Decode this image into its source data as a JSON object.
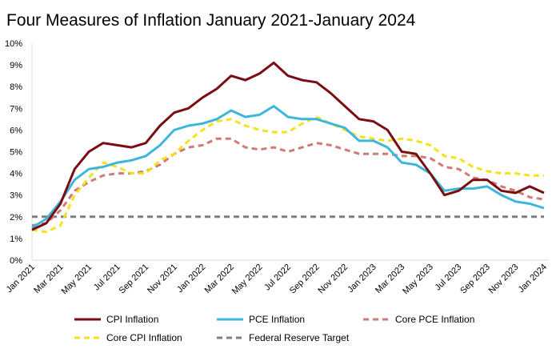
{
  "chart_data": {
    "type": "line",
    "title": "Four Measures of Inflation January 2021-January 2024",
    "xlabel": "",
    "ylabel": "",
    "ylim": [
      0,
      10
    ],
    "yticks": [
      "0%",
      "1%",
      "2%",
      "3%",
      "4%",
      "5%",
      "6%",
      "7%",
      "8%",
      "9%",
      "10%"
    ],
    "x_tick_labels": [
      "Jan 2021",
      "Mar 2021",
      "May 2021",
      "Jul 2021",
      "Sep 2021",
      "Nov 2021",
      "Jan 2022",
      "Mar 2022",
      "May 2022",
      "Jul 2022",
      "Sep 2022",
      "Nov 2022",
      "Jan 2023",
      "Mar 2023",
      "May 2023",
      "Jul 2023",
      "Sep 2023",
      "Nov 2023",
      "Jan 2024"
    ],
    "x": [
      "Jan 2021",
      "Feb 2021",
      "Mar 2021",
      "Apr 2021",
      "May 2021",
      "Jun 2021",
      "Jul 2021",
      "Aug 2021",
      "Sep 2021",
      "Oct 2021",
      "Nov 2021",
      "Dec 2021",
      "Jan 2022",
      "Feb 2022",
      "Mar 2022",
      "Apr 2022",
      "May 2022",
      "Jun 2022",
      "Jul 2022",
      "Aug 2022",
      "Sep 2022",
      "Oct 2022",
      "Nov 2022",
      "Dec 2022",
      "Jan 2023",
      "Feb 2023",
      "Mar 2023",
      "Apr 2023",
      "May 2023",
      "Jun 2023",
      "Jul 2023",
      "Aug 2023",
      "Sep 2023",
      "Oct 2023",
      "Nov 2023",
      "Dec 2023",
      "Jan 2024"
    ],
    "grid": false,
    "legend_position": "bottom",
    "series": [
      {
        "name": "CPI Inflation",
        "color": "#7a0c12",
        "style": "solid",
        "values": [
          1.4,
          1.7,
          2.6,
          4.2,
          5.0,
          5.4,
          5.3,
          5.2,
          5.4,
          6.2,
          6.8,
          7.0,
          7.5,
          7.9,
          8.5,
          8.3,
          8.6,
          9.1,
          8.5,
          8.3,
          8.2,
          7.7,
          7.1,
          6.5,
          6.4,
          6.0,
          5.0,
          4.9,
          4.0,
          3.0,
          3.2,
          3.7,
          3.7,
          3.2,
          3.1,
          3.4,
          3.1
        ]
      },
      {
        "name": "PCE Inflation",
        "color": "#3db6dd",
        "style": "solid",
        "values": [
          1.5,
          1.9,
          2.7,
          3.7,
          4.2,
          4.3,
          4.5,
          4.6,
          4.8,
          5.3,
          6.0,
          6.2,
          6.3,
          6.5,
          6.9,
          6.6,
          6.7,
          7.1,
          6.6,
          6.5,
          6.5,
          6.3,
          6.1,
          5.5,
          5.5,
          5.2,
          4.5,
          4.4,
          4.0,
          3.2,
          3.3,
          3.3,
          3.4,
          3.0,
          2.7,
          2.6,
          2.4
        ]
      },
      {
        "name": "Core PCE Inflation",
        "color": "#d07a78",
        "style": "dashed",
        "values": [
          1.6,
          1.7,
          2.3,
          3.2,
          3.6,
          3.9,
          4.0,
          4.0,
          4.1,
          4.4,
          4.9,
          5.2,
          5.3,
          5.6,
          5.6,
          5.2,
          5.1,
          5.2,
          5.0,
          5.2,
          5.4,
          5.3,
          5.1,
          4.9,
          4.9,
          4.9,
          4.8,
          4.8,
          4.7,
          4.3,
          4.2,
          3.8,
          3.7,
          3.4,
          3.2,
          2.9,
          2.8
        ]
      },
      {
        "name": "Core CPI Inflation",
        "color": "#f4e21c",
        "style": "dashed",
        "values": [
          1.4,
          1.3,
          1.6,
          3.0,
          3.8,
          4.5,
          4.3,
          4.0,
          4.0,
          4.6,
          4.9,
          5.5,
          6.0,
          6.4,
          6.5,
          6.2,
          6.0,
          5.9,
          5.9,
          6.3,
          6.6,
          6.3,
          6.0,
          5.7,
          5.6,
          5.5,
          5.6,
          5.5,
          5.3,
          4.8,
          4.7,
          4.3,
          4.1,
          4.0,
          4.0,
          3.9,
          3.9
        ]
      },
      {
        "name": "Federal Reserve Target",
        "color": "#7f7f7f",
        "style": "dashed",
        "values": [
          2,
          2,
          2,
          2,
          2,
          2,
          2,
          2,
          2,
          2,
          2,
          2,
          2,
          2,
          2,
          2,
          2,
          2,
          2,
          2,
          2,
          2,
          2,
          2,
          2,
          2,
          2,
          2,
          2,
          2,
          2,
          2,
          2,
          2,
          2,
          2,
          2
        ]
      }
    ],
    "legend_order": [
      "CPI Inflation",
      "PCE Inflation",
      "Core PCE Inflation",
      "Core CPI Inflation",
      "Federal Reserve Target"
    ]
  }
}
